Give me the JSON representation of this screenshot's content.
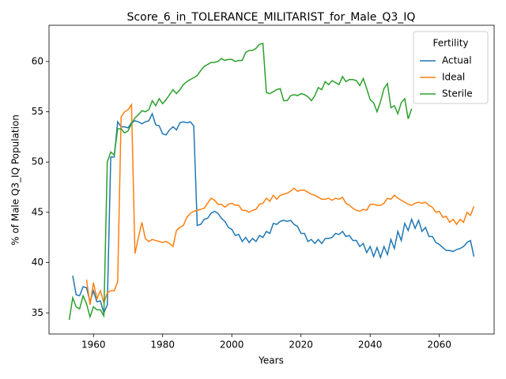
{
  "chart_data": {
    "type": "line",
    "title": "Score_6_in_TOLERANCE_MILITARIST_for_Male_Q3_IQ",
    "x_label": "Years",
    "y_label": "% of Male Q3_IQ Population",
    "legend_title": "Fertility",
    "legend": "upper right",
    "grid": false,
    "xlim": [
      1947.15,
      2075.85
    ],
    "ylim": [
      32.9,
      63.6
    ],
    "xticks": [
      1960,
      1980,
      2000,
      2020,
      2040,
      2060
    ],
    "yticks": [
      35,
      40,
      45,
      50,
      55,
      60
    ],
    "x": [
      1953,
      1954,
      1955,
      1956,
      1957,
      1958,
      1959,
      1960,
      1961,
      1962,
      1963,
      1964,
      1965,
      1966,
      1967,
      1968,
      1969,
      1970,
      1971,
      1972,
      1973,
      1974,
      1975,
      1976,
      1977,
      1978,
      1979,
      1980,
      1981,
      1982,
      1983,
      1984,
      1985,
      1986,
      1987,
      1988,
      1989,
      1990,
      1991,
      1992,
      1993,
      1994,
      1995,
      1996,
      1997,
      1998,
      1999,
      2000,
      2001,
      2002,
      2003,
      2004,
      2005,
      2006,
      2007,
      2008,
      2009,
      2010,
      2011,
      2012,
      2013,
      2014,
      2015,
      2016,
      2017,
      2018,
      2019,
      2020,
      2021,
      2022,
      2023,
      2024,
      2025,
      2026,
      2027,
      2028,
      2029,
      2030,
      2031,
      2032,
      2033,
      2034,
      2035,
      2036,
      2037,
      2038,
      2039,
      2040,
      2041,
      2042,
      2043,
      2044,
      2045,
      2046,
      2047,
      2048,
      2049,
      2050,
      2051,
      2052,
      2053,
      2054,
      2055,
      2056,
      2057,
      2058,
      2059,
      2060,
      2061,
      2062,
      2063,
      2064,
      2065,
      2066,
      2067,
      2068,
      2069,
      2070
    ],
    "series": [
      {
        "name": "Actual",
        "color": "#1f77b4",
        "values": [
          null,
          38.7,
          36.8,
          36.7,
          37.6,
          37.5,
          36.1,
          37.2,
          36.1,
          36.2,
          35.0,
          35.8,
          50.5,
          50.5,
          54.0,
          53.5,
          53.5,
          53.4,
          53.9,
          54.1,
          54.0,
          53.8,
          54.0,
          54.1,
          54.8,
          53.7,
          53.6,
          52.8,
          52.7,
          53.2,
          53.5,
          53.2,
          53.9,
          54.0,
          53.9,
          54.0,
          53.6,
          43.7,
          43.8,
          44.3,
          44.4,
          44.9,
          45.1,
          44.9,
          44.4,
          44.1,
          43.5,
          43.3,
          42.7,
          42.8,
          42.1,
          42.5,
          42.0,
          42.4,
          42.1,
          42.7,
          42.5,
          43.1,
          42.9,
          43.9,
          43.8,
          44.1,
          44.2,
          44.1,
          44.2,
          43.8,
          43.6,
          42.9,
          42.9,
          42.1,
          42.3,
          41.9,
          42.3,
          41.9,
          42.4,
          42.4,
          42.5,
          42.9,
          42.8,
          43.1,
          42.6,
          42.7,
          42.2,
          42.2,
          41.6,
          41.9,
          41.0,
          41.6,
          40.6,
          41.5,
          40.5,
          41.6,
          40.8,
          42.3,
          41.4,
          43.1,
          42.2,
          43.9,
          43.2,
          44.3,
          43.4,
          44.2,
          43.1,
          43.5,
          42.6,
          42.6,
          42.0,
          41.8,
          41.5,
          41.2,
          41.2,
          41.1,
          41.3,
          41.4,
          41.6,
          42.0,
          42.2,
          40.6
        ]
      },
      {
        "name": "Ideal",
        "color": "#ff7f0e",
        "values": [
          null,
          null,
          null,
          null,
          null,
          38.3,
          35.8,
          38.0,
          36.4,
          37.2,
          36.0,
          37.0,
          37.2,
          37.2,
          38.1,
          54.5,
          55.0,
          55.2,
          55.7,
          40.9,
          42.5,
          44.0,
          42.4,
          42.1,
          42.3,
          42.2,
          42.1,
          42.0,
          42.1,
          41.9,
          41.6,
          43.2,
          43.5,
          43.7,
          44.5,
          44.9,
          45.1,
          45.2,
          45.3,
          45.4,
          45.9,
          46.4,
          46.2,
          45.8,
          45.8,
          45.5,
          45.8,
          45.9,
          45.7,
          45.7,
          45.2,
          45.2,
          45.0,
          45.2,
          45.3,
          45.8,
          45.9,
          46.4,
          46.1,
          46.7,
          46.3,
          46.7,
          46.8,
          46.9,
          47.1,
          47.4,
          47.1,
          47.2,
          47.2,
          47.0,
          46.8,
          46.7,
          46.5,
          46.3,
          46.3,
          46.4,
          46.2,
          46.4,
          46.3,
          46.5,
          45.9,
          45.7,
          45.4,
          45.2,
          45.1,
          45.3,
          45.2,
          45.8,
          45.8,
          45.7,
          45.7,
          45.9,
          46.4,
          46.3,
          46.7,
          46.4,
          46.2,
          46.0,
          45.8,
          45.7,
          45.9,
          46.0,
          45.9,
          46.0,
          45.7,
          45.5,
          45.0,
          45.1,
          44.5,
          44.6,
          44.0,
          44.3,
          43.8,
          44.3,
          44.0,
          45.0,
          44.7,
          45.6
        ]
      },
      {
        "name": "Sterile",
        "color": "#2ca02c",
        "values": [
          34.3,
          36.5,
          35.6,
          35.4,
          36.7,
          35.9,
          34.6,
          35.6,
          35.3,
          35.3,
          34.7,
          50.0,
          51.0,
          50.7,
          53.3,
          53.3,
          52.9,
          53.1,
          53.8,
          54.4,
          54.7,
          55.1,
          55.0,
          55.2,
          56.1,
          55.6,
          56.3,
          55.8,
          56.2,
          56.7,
          57.2,
          56.8,
          57.2,
          57.7,
          58.0,
          58.2,
          58.4,
          58.6,
          59.1,
          59.5,
          59.7,
          59.9,
          59.9,
          60.0,
          60.3,
          60.1,
          60.2,
          60.2,
          60.0,
          60.1,
          60.1,
          60.9,
          61.1,
          61.1,
          61.3,
          61.7,
          61.8,
          56.9,
          56.8,
          57.0,
          57.2,
          57.3,
          56.1,
          56.1,
          56.6,
          56.7,
          56.6,
          56.8,
          56.7,
          56.5,
          56.1,
          56.6,
          57.4,
          57.2,
          58.0,
          57.7,
          58.1,
          57.9,
          57.7,
          58.5,
          58.0,
          58.2,
          58.2,
          58.1,
          57.6,
          58.3,
          57.3,
          56.2,
          55.9,
          55.0,
          56.0,
          57.3,
          57.8,
          55.4,
          55.6,
          54.8,
          55.9,
          56.3,
          54.3,
          55.3,
          null,
          null,
          null,
          null,
          null,
          null,
          null,
          null,
          null,
          null,
          null,
          null,
          null,
          null,
          null,
          null,
          null,
          null
        ]
      }
    ]
  }
}
